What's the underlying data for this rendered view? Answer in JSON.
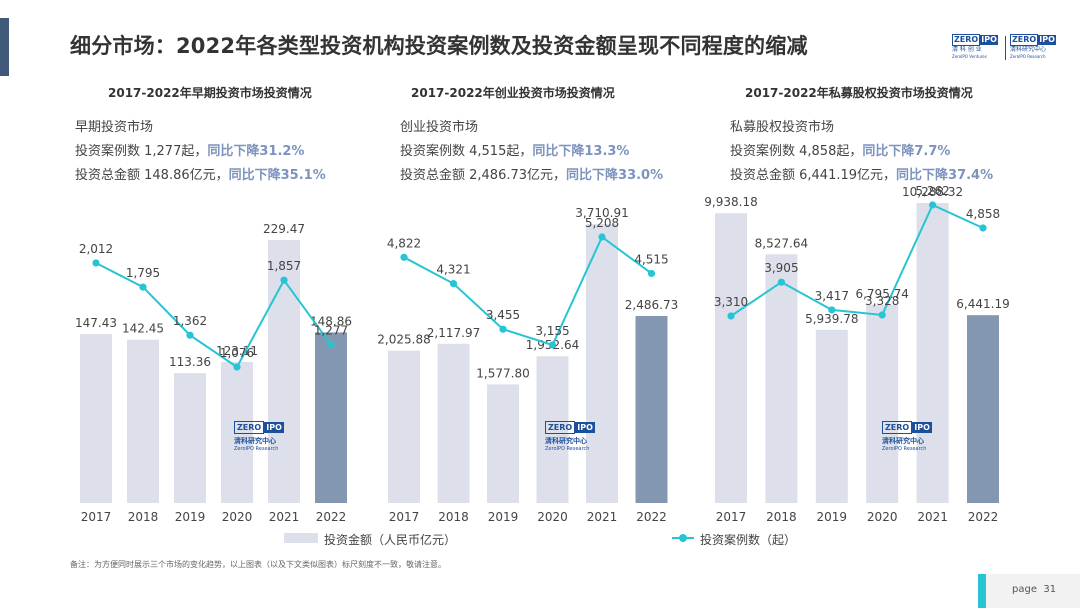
{
  "page": {
    "title": "细分市场：2022年各类型投资机构投资案例数及投资金额呈现不同程度的缩减",
    "number_prefix": "page",
    "number": "31",
    "footnote": "备注：为方便同时展示三个市场的变化趋势，以上图表（以及下文类似图表）标尺刻度不一致，敬请注意。"
  },
  "logo": {
    "zero": "ZERO",
    "ipo": "IPO",
    "left_cn": "清 科 创 业",
    "left_en": "ZeroIPO Ventures",
    "right_cn": "清科研究中心",
    "right_en": "ZeroIPO Research"
  },
  "watermark": {
    "zero": "ZERO",
    "ipo": "IPO",
    "cn": "清科研究中心",
    "en": "ZeroIPO Research"
  },
  "legend": {
    "bar_label": "投资金额（人民币亿元）",
    "line_label": "投资案例数（起）"
  },
  "colors": {
    "bar": "#dde0ea",
    "bar_highlight": "#8497b0",
    "line": "#27c4d4",
    "highlight_text": "#7c93bd"
  },
  "panels": [
    {
      "title": "2017-2022年早期投资市场投资情况",
      "market": "早期投资市场",
      "cases_text": "投资案例数 1,277起，",
      "cases_change": "同比下降31.2%",
      "amount_text": "投资总金额 148.86亿元，",
      "amount_change": "同比下降35.1%"
    },
    {
      "title": "2017-2022年创业投资市场投资情况",
      "market": "创业投资市场",
      "cases_text": "投资案例数 4,515起，",
      "cases_change": "同比下降13.3%",
      "amount_text": "投资总金额 2,486.73亿元，",
      "amount_change": "同比下降33.0%"
    },
    {
      "title": "2017-2022年私募股权投资市场投资情况",
      "market": "私募股权投资市场",
      "cases_text": "投资案例数 4,858起，",
      "cases_change": "同比下降7.7%",
      "amount_text": "投资总金额 6,441.19亿元，",
      "amount_change": "同比下降37.4%"
    }
  ],
  "chart_data": [
    {
      "type": "bar",
      "title": "2017-2022年早期投资市场投资情况",
      "categories": [
        "2017",
        "2018",
        "2019",
        "2020",
        "2021",
        "2022"
      ],
      "series": [
        {
          "name": "投资金额（人民币亿元）",
          "type": "bar",
          "values": [
            147.43,
            142.45,
            113.36,
            123.11,
            229.47,
            148.86
          ],
          "labels": [
            "147.43",
            "142.45",
            "113.36",
            "123.11",
            "229.47",
            "148.86"
          ]
        },
        {
          "name": "投资案例数（起）",
          "type": "line",
          "values": [
            2012,
            1795,
            1362,
            1076,
            1857,
            1277
          ],
          "labels": [
            "2,012",
            "1,795",
            "1,362",
            "1,076",
            "1,857",
            "1,277"
          ]
        }
      ]
    },
    {
      "type": "bar",
      "title": "2017-2022年创业投资市场投资情况",
      "categories": [
        "2017",
        "2018",
        "2019",
        "2020",
        "2021",
        "2022"
      ],
      "series": [
        {
          "name": "投资金额（人民币亿元）",
          "type": "bar",
          "values": [
            2025.88,
            2117.97,
            1577.8,
            1952.64,
            3710.91,
            2486.73
          ],
          "labels": [
            "2,025.88",
            "2,117.97",
            "1,577.80",
            "1,952.64",
            "3,710.91",
            "2,486.73"
          ]
        },
        {
          "name": "投资案例数（起）",
          "type": "line",
          "values": [
            4822,
            4321,
            3455,
            3155,
            5208,
            4515
          ],
          "labels": [
            "4,822",
            "4,321",
            "3,455",
            "3,155",
            "5,208",
            "4,515"
          ]
        }
      ]
    },
    {
      "type": "bar",
      "title": "2017-2022年私募股权投资市场投资情况",
      "categories": [
        "2017",
        "2018",
        "2019",
        "2020",
        "2021",
        "2022"
      ],
      "series": [
        {
          "name": "投资金额（人民币亿元）",
          "type": "bar",
          "values": [
            9938.18,
            8527.64,
            5939.78,
            6795.74,
            10288.32,
            6441.19
          ],
          "labels": [
            "9,938.18",
            "8,527.64",
            "5,939.78",
            "6,795.74",
            "10,288.32",
            "6,441.19"
          ]
        },
        {
          "name": "投资案例数（起）",
          "type": "line",
          "values": [
            3310,
            3905,
            3417,
            3328,
            5262,
            4858
          ],
          "labels": [
            "3,310",
            "3,905",
            "3,417",
            "3,328",
            "5,262",
            "4,858"
          ]
        }
      ]
    }
  ]
}
